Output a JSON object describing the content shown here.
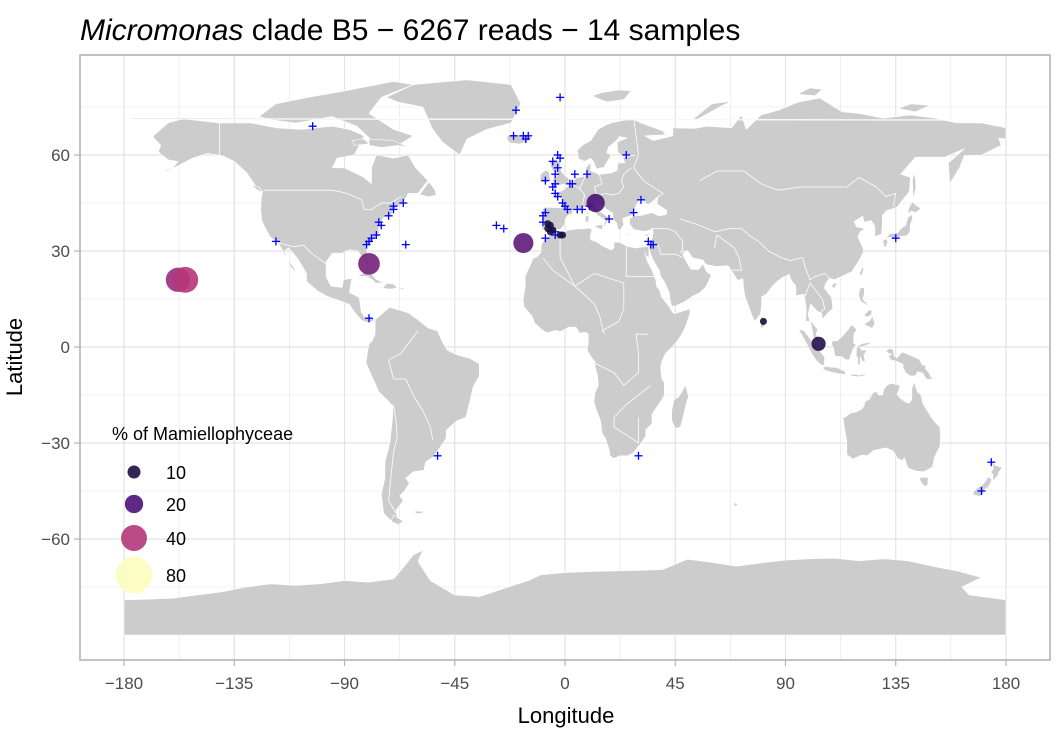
{
  "title": {
    "genus": "Micromonas",
    "rest": " clade B5 − 6267 reads − 14 samples"
  },
  "colors": {
    "land": "#cccccc",
    "grid": "#e3e3e3",
    "frame": "#b3b3b3",
    "cross": "#0000ff"
  },
  "chart_data": {
    "type": "scatter",
    "map": "world",
    "xlabel": "Longitude",
    "ylabel": "Latitude",
    "xlim": [
      -180,
      180
    ],
    "ylim": [
      -90,
      85
    ],
    "x_ticks": [
      -180,
      -135,
      -90,
      -45,
      0,
      45,
      90,
      135,
      180
    ],
    "x_tick_labels": [
      "−180",
      "−135",
      "−90",
      "−45",
      "0",
      "45",
      "90",
      "135",
      "180"
    ],
    "y_ticks": [
      -60,
      -30,
      0,
      30,
      60
    ],
    "y_tick_labels": [
      "−60",
      "−30",
      "0",
      "30",
      "60"
    ],
    "grid": true,
    "legend": {
      "title": "% of Mamiellophyceae",
      "position": "bottom-left",
      "entries": [
        {
          "label": "10",
          "value": 10,
          "color": "#1a1042"
        },
        {
          "label": "20",
          "value": 20,
          "color": "#4a1278"
        },
        {
          "label": "40",
          "value": 40,
          "color": "#b5367a"
        },
        {
          "label": "80",
          "value": 80,
          "color": "#fcfdbf"
        }
      ]
    },
    "samples": [
      {
        "lon": -158,
        "lat": 21,
        "pct": 35
      },
      {
        "lon": -155,
        "lat": 21,
        "pct": 40
      },
      {
        "lon": -80,
        "lat": 26,
        "pct": 28
      },
      {
        "lon": -17,
        "lat": 32.5,
        "pct": 24
      },
      {
        "lon": 12.5,
        "lat": 45,
        "pct": 20
      },
      {
        "lon": 103.5,
        "lat": 1,
        "pct": 12
      },
      {
        "lon": -6,
        "lat": 36,
        "pct": 3
      },
      {
        "lon": -7,
        "lat": 37,
        "pct": 3
      },
      {
        "lon": -6,
        "lat": 38,
        "pct": 3
      },
      {
        "lon": -7,
        "lat": 38.5,
        "pct": 3
      },
      {
        "lon": -5,
        "lat": 36.5,
        "pct": 3
      },
      {
        "lon": -2,
        "lat": 35,
        "pct": 3
      },
      {
        "lon": -1,
        "lat": 35,
        "pct": 3
      },
      {
        "lon": 81,
        "lat": 8,
        "pct": 3
      }
    ],
    "stations_without_clade": [
      [
        -103,
        69
      ],
      [
        -118,
        33
      ],
      [
        -81,
        32
      ],
      [
        -80,
        33
      ],
      [
        -79,
        34
      ],
      [
        -77,
        35
      ],
      [
        -76,
        39
      ],
      [
        -75,
        38
      ],
      [
        -72,
        41
      ],
      [
        -70,
        43
      ],
      [
        -70,
        44
      ],
      [
        -66,
        45
      ],
      [
        -65,
        32
      ],
      [
        -80,
        9
      ],
      [
        -52,
        -34
      ],
      [
        -20,
        74
      ],
      [
        -21,
        66
      ],
      [
        -17,
        66
      ],
      [
        -15,
        66
      ],
      [
        -16,
        65
      ],
      [
        -28,
        38
      ],
      [
        -25,
        37
      ],
      [
        -2,
        78
      ],
      [
        -3,
        60
      ],
      [
        -2,
        59
      ],
      [
        -5,
        58
      ],
      [
        -3,
        56
      ],
      [
        -4,
        54
      ],
      [
        -8,
        52
      ],
      [
        -4,
        51
      ],
      [
        -5,
        50
      ],
      [
        -4,
        48
      ],
      [
        -3,
        47
      ],
      [
        -1,
        45
      ],
      [
        0,
        44
      ],
      [
        1,
        43
      ],
      [
        -8,
        42
      ],
      [
        -9,
        39
      ],
      [
        -9,
        41
      ],
      [
        -8,
        34
      ],
      [
        2,
        51
      ],
      [
        3,
        51
      ],
      [
        4,
        54
      ],
      [
        9,
        54
      ],
      [
        10,
        44
      ],
      [
        5,
        43
      ],
      [
        7,
        43
      ],
      [
        25,
        60
      ],
      [
        28,
        42
      ],
      [
        31,
        46
      ],
      [
        34,
        33
      ],
      [
        35,
        32
      ],
      [
        36,
        32
      ],
      [
        135,
        34
      ],
      [
        -4,
        35
      ],
      [
        -4,
        36
      ],
      [
        18,
        40
      ],
      [
        30,
        -34
      ],
      [
        174,
        -36
      ],
      [
        170,
        -45
      ]
    ]
  }
}
